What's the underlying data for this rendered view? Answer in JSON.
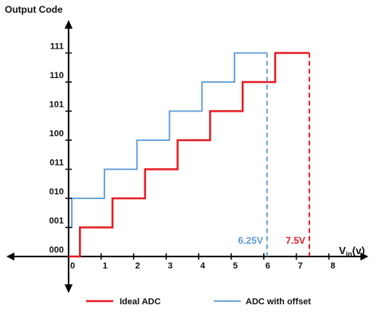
{
  "chart_data": {
    "type": "line",
    "ylabel": "Output Code",
    "xlabel": "V",
    "xlabel_sub": "in",
    "xlabel_tail": "(v)",
    "x_ticks": [
      "0",
      "1",
      "2",
      "3",
      "4",
      "5",
      "6",
      "7",
      "8"
    ],
    "y_ticks": [
      "000",
      "001",
      "010",
      "011",
      "100",
      "101",
      "110",
      "111"
    ],
    "xlim": [
      0,
      8
    ],
    "ylim": [
      0,
      7
    ],
    "grid": false,
    "legend_position": "bottom",
    "series": [
      {
        "name": "Ideal ADC",
        "color": "#e41e26",
        "x": [
          0,
          0.35,
          0.35,
          1.35,
          1.35,
          2.35,
          2.35,
          3.35,
          3.35,
          4.35,
          4.35,
          5.35,
          5.35,
          6.35,
          6.35,
          7.4
        ],
        "y": [
          0,
          0,
          1,
          1,
          2,
          2,
          3,
          3,
          4,
          4,
          5,
          5,
          6,
          6,
          7,
          7
        ],
        "end_marker_x": 7.4,
        "end_marker_label": "7.5V"
      },
      {
        "name": "ADC with offset",
        "color": "#5b9bd5",
        "x": [
          0,
          0.1,
          0.1,
          1.1,
          1.1,
          2.1,
          2.1,
          3.1,
          3.1,
          4.1,
          4.1,
          5.1,
          5.1,
          6.1
        ],
        "y": [
          1,
          1,
          2,
          2,
          3,
          3,
          4,
          4,
          5,
          5,
          6,
          6,
          7,
          7
        ],
        "end_marker_x": 6.1,
        "end_marker_label": "6.25V"
      }
    ]
  }
}
